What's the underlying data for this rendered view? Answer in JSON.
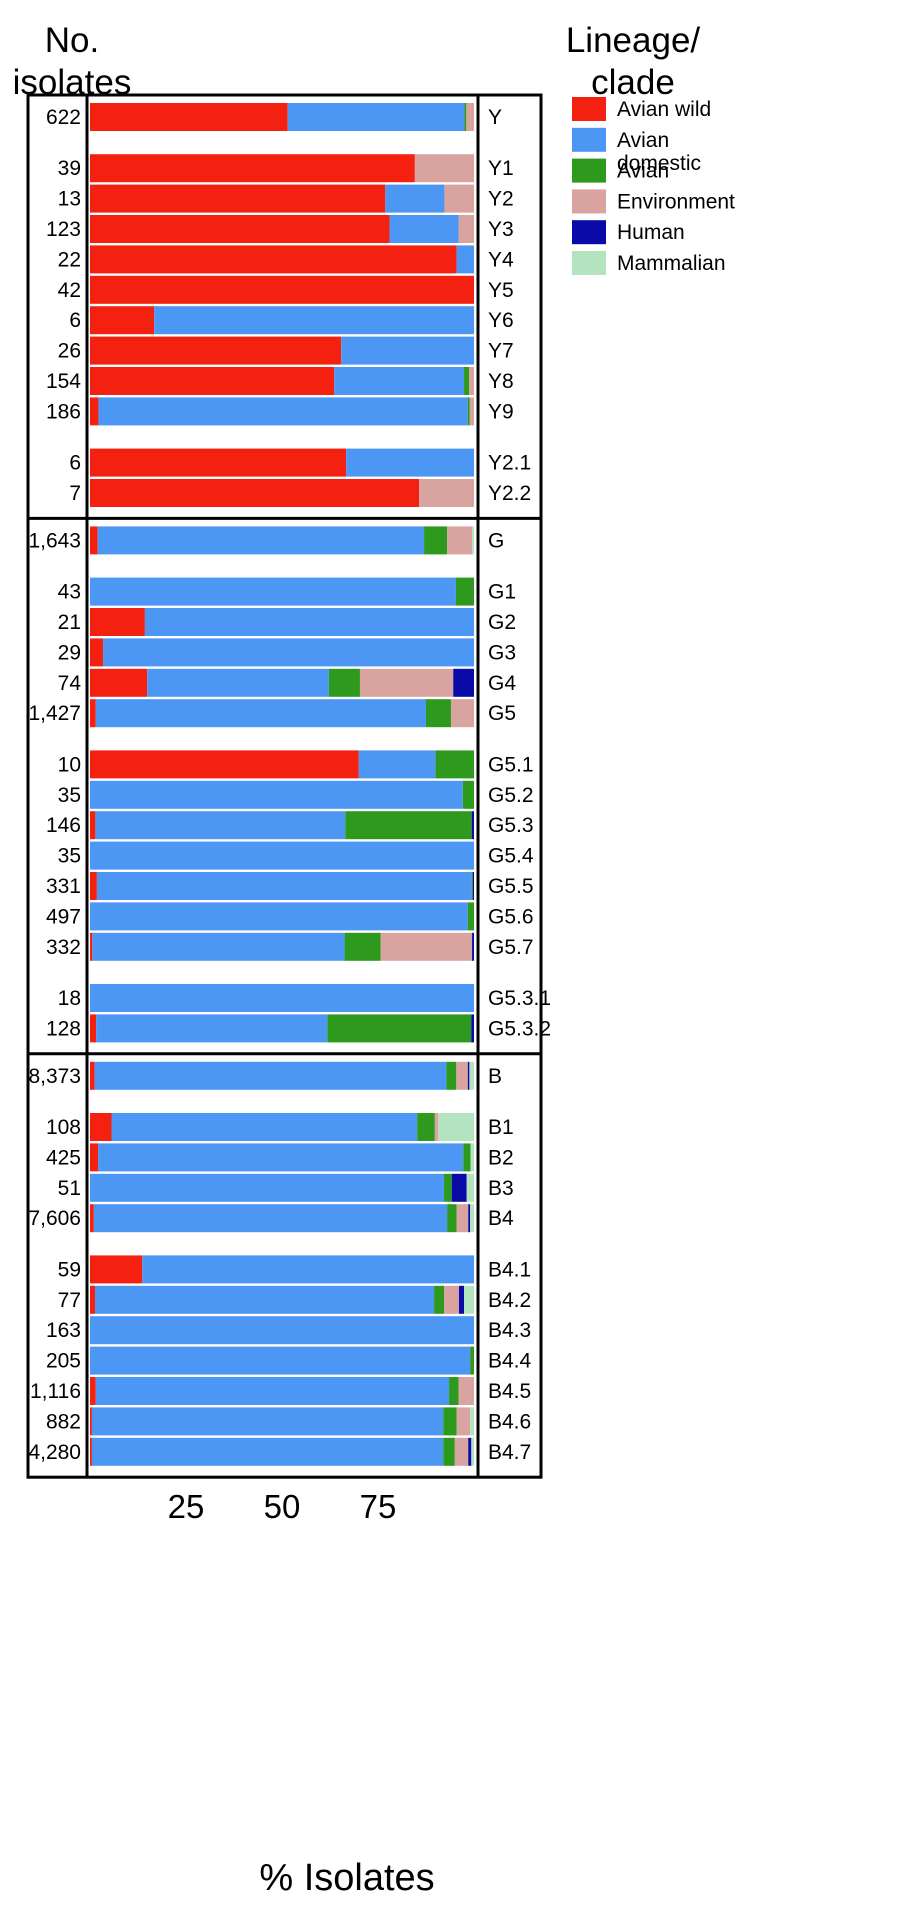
{
  "header": {
    "count_line1": "No.",
    "count_line2": "isolates",
    "clade_line1": "Lineage/",
    "clade_line2": "clade"
  },
  "chart_data": {
    "type": "bar",
    "orientation": "horizontal",
    "stacked": true,
    "xlabel": "% Isolates",
    "xlim": [
      0,
      100
    ],
    "xticks": [
      25,
      50,
      75
    ],
    "legend_position": "right",
    "categories": [
      "Avian wild",
      "Avian domestic",
      "Avian",
      "Environment",
      "Human",
      "Mammalian"
    ],
    "colors": [
      "#f52110",
      "#4c97f3",
      "#2d9a1d",
      "#d9a3a0",
      "#0a0aa8",
      "#b4e3bf"
    ],
    "legend_lines": [
      [
        "Avian wild"
      ],
      [
        "Avian",
        "domestic"
      ],
      [
        "Avian"
      ],
      [
        "Environment"
      ],
      [
        "Human"
      ],
      [
        "Mammalian"
      ]
    ],
    "groups": [
      {
        "name": "Y",
        "rows": [
          {
            "count": "622",
            "clade": "Y",
            "values": [
              51.5,
              46,
              0.5,
              2,
              0,
              0
            ]
          },
          {
            "count": "39",
            "clade": "Y1",
            "values": [
              84.6,
              0,
              0,
              15.4,
              0,
              0
            ]
          },
          {
            "count": "13",
            "clade": "Y2",
            "values": [
              76.9,
              15.4,
              0,
              7.7,
              0,
              0
            ]
          },
          {
            "count": "123",
            "clade": "Y3",
            "values": [
              78,
              18,
              0,
              4,
              0,
              0
            ]
          },
          {
            "count": "22",
            "clade": "Y4",
            "values": [
              95.5,
              4.5,
              0,
              0,
              0,
              0
            ]
          },
          {
            "count": "42",
            "clade": "Y5",
            "values": [
              100,
              0,
              0,
              0,
              0,
              0
            ]
          },
          {
            "count": "6",
            "clade": "Y6",
            "values": [
              16.7,
              83.3,
              0,
              0,
              0,
              0
            ]
          },
          {
            "count": "26",
            "clade": "Y7",
            "values": [
              65.4,
              34.6,
              0,
              0,
              0,
              0
            ]
          },
          {
            "count": "154",
            "clade": "Y8",
            "values": [
              63.6,
              33.8,
              1.3,
              1.3,
              0,
              0
            ]
          },
          {
            "count": "186",
            "clade": "Y9",
            "values": [
              2.2,
              96.2,
              0.5,
              1.1,
              0,
              0
            ]
          },
          {
            "count": "6",
            "clade": "Y2.1",
            "values": [
              66.7,
              33.3,
              0,
              0,
              0,
              0
            ]
          },
          {
            "count": "7",
            "clade": "Y2.2",
            "values": [
              85.7,
              0,
              0,
              14.3,
              0,
              0
            ]
          }
        ]
      },
      {
        "name": "G",
        "rows": [
          {
            "count": "1,643",
            "clade": "G",
            "values": [
              2,
              85,
              6,
              6.5,
              0,
              0.5
            ]
          },
          {
            "count": "43",
            "clade": "G1",
            "values": [
              0,
              95.3,
              4.7,
              0,
              0,
              0
            ]
          },
          {
            "count": "21",
            "clade": "G2",
            "values": [
              14.3,
              85.7,
              0,
              0,
              0,
              0
            ]
          },
          {
            "count": "29",
            "clade": "G3",
            "values": [
              3.4,
              96.6,
              0,
              0,
              0,
              0
            ]
          },
          {
            "count": "74",
            "clade": "G4",
            "values": [
              14.9,
              47.3,
              8.1,
              24.3,
              5.4,
              0
            ]
          },
          {
            "count": "1,427",
            "clade": "G5",
            "values": [
              1.5,
              86,
              6.5,
              6,
              0,
              0
            ]
          },
          {
            "count": "10",
            "clade": "G5.1",
            "values": [
              70,
              20,
              10,
              0,
              0,
              0
            ]
          },
          {
            "count": "35",
            "clade": "G5.2",
            "values": [
              0,
              97.1,
              2.9,
              0,
              0,
              0
            ]
          },
          {
            "count": "146",
            "clade": "G5.3",
            "values": [
              1.4,
              65.1,
              32.9,
              0,
              0.6,
              0
            ]
          },
          {
            "count": "35",
            "clade": "G5.4",
            "values": [
              0,
              100,
              0,
              0,
              0,
              0
            ]
          },
          {
            "count": "331",
            "clade": "G5.5",
            "values": [
              1.8,
              97.6,
              0.3,
              0,
              0.3,
              0
            ]
          },
          {
            "count": "497",
            "clade": "G5.6",
            "values": [
              0,
              98.4,
              1.6,
              0,
              0,
              0
            ]
          },
          {
            "count": "332",
            "clade": "G5.7",
            "values": [
              0.6,
              65.7,
              9.4,
              23.8,
              0.5,
              0
            ]
          },
          {
            "count": "18",
            "clade": "G5.3.1",
            "values": [
              0,
              100,
              0,
              0,
              0,
              0
            ]
          },
          {
            "count": "128",
            "clade": "G5.3.2",
            "values": [
              1.6,
              60.2,
              37.5,
              0,
              0.7,
              0
            ]
          }
        ]
      },
      {
        "name": "B",
        "rows": [
          {
            "count": "8,373",
            "clade": "B",
            "values": [
              1.2,
              91.6,
              2.6,
              3,
              0.4,
              1.2
            ]
          },
          {
            "count": "108",
            "clade": "B1",
            "values": [
              5.6,
              79.6,
              4.6,
              0.9,
              0,
              9.3
            ]
          },
          {
            "count": "425",
            "clade": "B2",
            "values": [
              2.1,
              95.1,
              1.9,
              0,
              0,
              0.9
            ]
          },
          {
            "count": "51",
            "clade": "B3",
            "values": [
              0,
              92.2,
              2,
              0,
              3.9,
              1.9
            ]
          },
          {
            "count": "7,606",
            "clade": "B4",
            "values": [
              1,
              92,
              2.5,
              3,
              0.5,
              1
            ]
          },
          {
            "count": "59",
            "clade": "B4.1",
            "values": [
              13.6,
              86.4,
              0,
              0,
              0,
              0
            ]
          },
          {
            "count": "77",
            "clade": "B4.2",
            "values": [
              1.3,
              88.3,
              2.6,
              3.9,
              1.3,
              2.6
            ]
          },
          {
            "count": "163",
            "clade": "B4.3",
            "values": [
              0,
              100,
              0,
              0,
              0,
              0
            ]
          },
          {
            "count": "205",
            "clade": "B4.4",
            "values": [
              0,
              99,
              1,
              0,
              0,
              0
            ]
          },
          {
            "count": "1,116",
            "clade": "B4.5",
            "values": [
              1.5,
              92,
              2.5,
              4,
              0,
              0
            ]
          },
          {
            "count": "882",
            "clade": "B4.6",
            "values": [
              0.5,
              91.5,
              3.5,
              3.5,
              0,
              1
            ]
          },
          {
            "count": "4,280",
            "clade": "B4.7",
            "values": [
              0.5,
              91.5,
              3,
              3.5,
              0.8,
              0.7
            ]
          }
        ]
      }
    ]
  }
}
